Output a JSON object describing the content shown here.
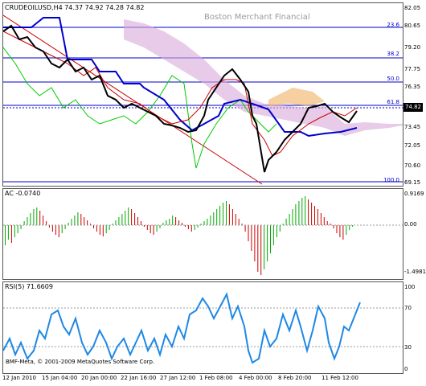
{
  "main": {
    "title": "CRUDEOILUSD,H4  74.37 74.92 74.28 74.82",
    "company": "Boston Merchant Financial",
    "price_tag": "74.82",
    "price_axis": [
      "82.05",
      "80.65",
      "79.20",
      "77.75",
      "76.35",
      "74.90",
      "73.45",
      "72.05",
      "70.60",
      "69.15"
    ],
    "fib_levels": [
      "23.6",
      "38.2",
      "50.0",
      "61.8",
      "100.0"
    ],
    "copyright": "BMF-Meta, © 2001-2009 MetaQuotes Software Corp."
  },
  "ac": {
    "title": "AC -0.0740",
    "axis": [
      "0.9169",
      "0.00",
      "-1.4981"
    ]
  },
  "rsi": {
    "title": "RSI(5) 71.6609",
    "axis": [
      "100",
      "70",
      "30",
      "0"
    ]
  },
  "time_axis": [
    "12 Jan 2010",
    "15 Jan 04:00",
    "20 Jan 00:00",
    "22 Jan 16:00",
    "27 Jan 12:00",
    "1 Feb 08:00",
    "4 Feb 00:00",
    "8 Feb 20:00",
    "11 Feb 12:00"
  ],
  "colors": {
    "candle": "#000000",
    "ichimoku_blue": "#0000cc",
    "red_line": "#cc0000",
    "green_line": "#00cc00",
    "cloud_pink": "#d8a8d8",
    "cloud_orange": "#f0b060",
    "ac_up": "#00aa00",
    "ac_down": "#cc0000",
    "rsi_line": "#1e88e5"
  }
}
